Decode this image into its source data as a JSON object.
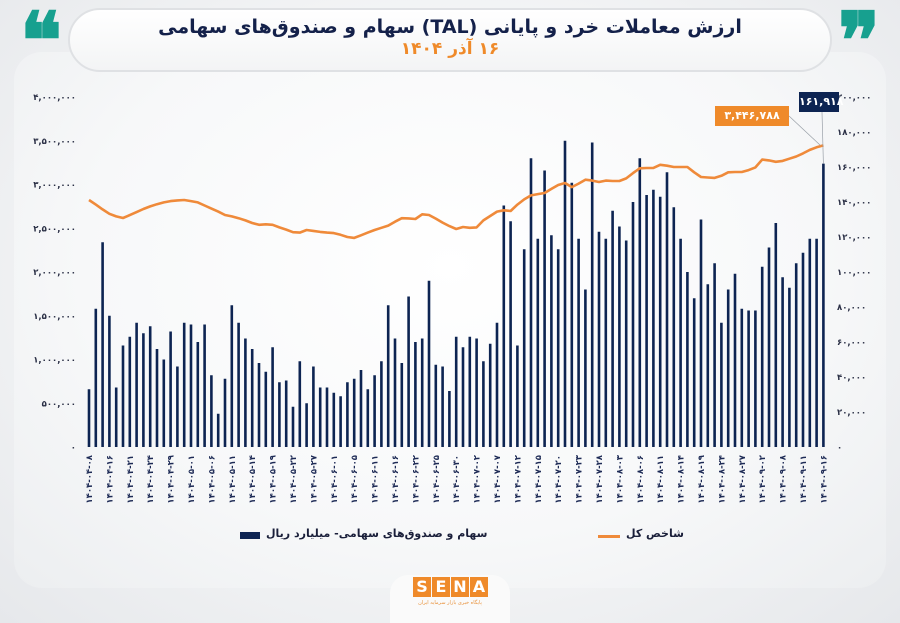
{
  "header": {
    "title": "ارزش معاملات خرد و پایانی (TAL) سهام و صندوق‌های سهامی",
    "subtitle": "۱۶ آذر ۱۴۰۴",
    "quote_open": "❝",
    "quote_close": "❞"
  },
  "logo": {
    "letters": [
      "S",
      "E",
      "N",
      "A"
    ],
    "tagline": "پایگاه خبری بازار سرمایه ایران"
  },
  "colors": {
    "bars": "#0d2452",
    "line": "#ef8a3a",
    "accent": "#17a08f",
    "title": "#14214a",
    "subtitle": "#ef8a2a"
  },
  "chart_data": {
    "type": "bar+line",
    "grid": false,
    "legend_placement": "bottom",
    "x_tick_labels": [
      "۱۴۰۴-۰۴-۰۸",
      "۱۴۰۴-۰۴-۱۶",
      "۱۴۰۴-۰۴-۲۱",
      "۱۴۰۴-۰۴-۲۴",
      "۱۴۰۴-۰۴-۲۹",
      "۱۴۰۴-۰۵-۰۱",
      "۱۴۰۴-۰۵-۰۶",
      "۱۴۰۴-۰۵-۱۱",
      "۱۴۰۴-۰۵-۱۴",
      "۱۴۰۴-۰۵-۱۹",
      "۱۴۰۴-۰۵-۲۲",
      "۱۴۰۴-۰۵-۲۷",
      "۱۴۰۴-۰۶-۰۱",
      "۱۴۰۴-۰۶-۰۵",
      "۱۴۰۴-۰۶-۱۱",
      "۱۴۰۴-۰۶-۱۶",
      "۱۴۰۴-۰۶-۲۲",
      "۱۴۰۴-۰۶-۲۵",
      "۱۴۰۴-۰۶-۳۰",
      "۱۴۰۴-۰۷-۰۲",
      "۱۴۰۴-۰۷-۰۷",
      "۱۴۰۴-۰۷-۱۲",
      "۱۴۰۴-۰۷-۱۵",
      "۱۴۰۴-۰۷-۲۰",
      "۱۴۰۴-۰۷-۲۳",
      "۱۴۰۴-۰۷-۲۸",
      "۱۴۰۴-۰۸-۰۳",
      "۱۴۰۴-۰۸-۰۶",
      "۱۴۰۴-۰۸-۱۱",
      "۱۴۰۴-۰۸-۱۴",
      "۱۴۰۴-۰۸-۱۹",
      "۱۴۰۴-۰۸-۲۴",
      "۱۴۰۴-۰۸-۲۷",
      "۱۴۰۴-۰۹-۰۲",
      "۱۴۰۴-۰۹-۰۸",
      "۱۴۰۴-۰۹-۱۱",
      "۱۴۰۴-۰۹-۱۶"
    ],
    "left_axis": {
      "range": [
        0,
        4000000
      ],
      "tick_labels": [
        "۰",
        "۵۰۰,۰۰۰",
        "۱,۰۰۰,۰۰۰",
        "۱,۵۰۰,۰۰۰",
        "۲,۰۰۰,۰۰۰",
        "۲,۵۰۰,۰۰۰",
        "۳,۰۰۰,۰۰۰",
        "۳,۵۰۰,۰۰۰",
        "۴,۰۰۰,۰۰۰"
      ]
    },
    "right_axis": {
      "range": [
        0,
        200000
      ],
      "tick_labels": [
        "۰",
        "۲۰,۰۰۰",
        "۴۰,۰۰۰",
        "۶۰,۰۰۰",
        "۸۰,۰۰۰",
        "۱۰۰,۰۰۰",
        "۱۲۰,۰۰۰",
        "۱۴۰,۰۰۰",
        "۱۶۰,۰۰۰",
        "۱۸۰,۰۰۰",
        "۲۰۰,۰۰۰"
      ]
    },
    "series": [
      {
        "name": "سهام و صندوق‌های سهامی- میلیارد ریال",
        "type": "bar",
        "axis": "right",
        "values": [
          33000,
          79000,
          117000,
          75000,
          34000,
          58000,
          63000,
          71000,
          65000,
          69000,
          56000,
          50000,
          66000,
          46000,
          71000,
          70000,
          60000,
          70000,
          41000,
          19000,
          39000,
          81000,
          71000,
          62000,
          56000,
          48000,
          43000,
          57000,
          37000,
          38000,
          23000,
          49000,
          25000,
          46000,
          34000,
          34000,
          31000,
          29000,
          37000,
          39000,
          44000,
          33000,
          41000,
          49000,
          81000,
          62000,
          48000,
          86000,
          60000,
          62000,
          95000,
          47000,
          46000,
          32000,
          63000,
          57000,
          63000,
          62000,
          49000,
          59000,
          71000,
          138000,
          129000,
          58000,
          113000,
          165000,
          119000,
          158000,
          121000,
          113000,
          175000,
          151000,
          119000,
          90000,
          174000,
          123000,
          119000,
          135000,
          126000,
          118000,
          140000,
          165000,
          144000,
          147000,
          143000,
          157000,
          137000,
          119000,
          100000,
          85000,
          130000,
          93000,
          105000,
          71000,
          90000,
          99000,
          79000,
          78000,
          78000,
          103000,
          114000,
          128000,
          97000,
          91000,
          105000,
          111000,
          119000,
          119000,
          161918
        ]
      },
      {
        "name": "شاخص کل",
        "type": "line",
        "axis": "left",
        "values": [
          2823000,
          2770000,
          2715000,
          2665000,
          2635000,
          2617000,
          2650000,
          2685000,
          2720000,
          2750000,
          2775000,
          2795000,
          2810000,
          2818000,
          2823000,
          2810000,
          2795000,
          2760000,
          2725000,
          2690000,
          2651000,
          2635000,
          2615000,
          2590000,
          2560000,
          2540000,
          2545000,
          2540000,
          2510000,
          2485000,
          2455000,
          2450000,
          2480000,
          2470000,
          2458000,
          2450000,
          2445000,
          2425000,
          2400000,
          2390000,
          2420000,
          2450000,
          2480000,
          2505000,
          2530000,
          2575000,
          2615000,
          2612000,
          2606000,
          2660000,
          2651000,
          2610000,
          2565000,
          2525000,
          2491000,
          2514000,
          2505000,
          2510000,
          2590000,
          2640000,
          2690000,
          2705000,
          2697000,
          2770000,
          2830000,
          2875000,
          2890000,
          2903000,
          2950000,
          2994000,
          3017000,
          2970000,
          3010000,
          3055000,
          3045000,
          3029000,
          3045000,
          3040000,
          3040000,
          3070000,
          3130000,
          3185000,
          3189000,
          3190000,
          3225000,
          3215000,
          3200000,
          3200000,
          3200000,
          3140000,
          3086000,
          3080000,
          3075000,
          3100000,
          3140000,
          3143000,
          3143000,
          3165000,
          3195000,
          3285000,
          3275000,
          3260000,
          3270000,
          3295000,
          3320000,
          3355000,
          3395000,
          3425000,
          3446788
        ]
      }
    ],
    "annotations": {
      "last_bar": "۱۶۱,۹۱۸",
      "last_index": "۳,۴۴۶,۷۸۸"
    },
    "legend": {
      "bars": "سهام و صندوق‌های سهامی- میلیارد ریال",
      "line": "شاخص کل"
    }
  }
}
